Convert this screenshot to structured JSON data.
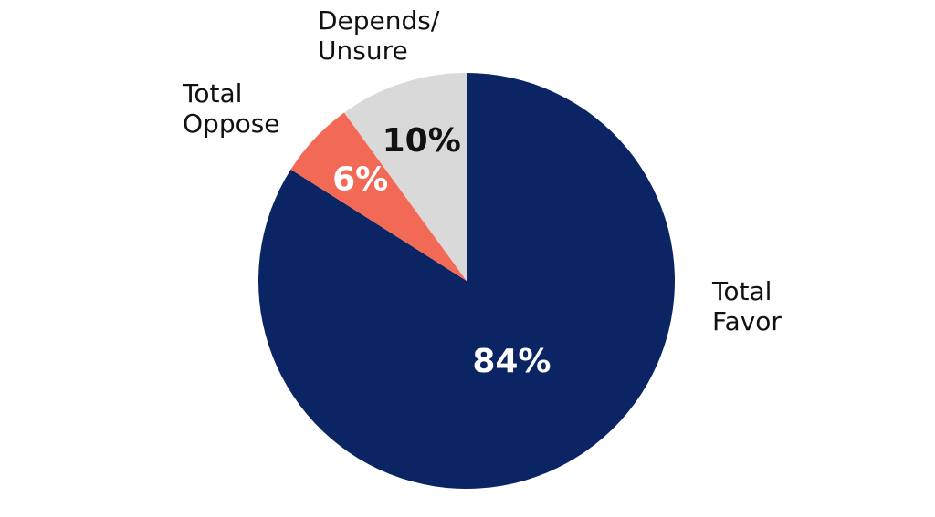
{
  "chart_data": {
    "type": "pie",
    "categories": [
      "Total Favor",
      "Total Oppose",
      "Depends/ Unsure"
    ],
    "values": [
      84,
      6,
      10
    ],
    "value_labels": [
      "84%",
      "6%",
      "10%"
    ],
    "colors": [
      "#0b2463",
      "#f26a55",
      "#d9d9d9"
    ],
    "label_colors": [
      "#ffffff",
      "#ffffff",
      "#111111"
    ]
  }
}
